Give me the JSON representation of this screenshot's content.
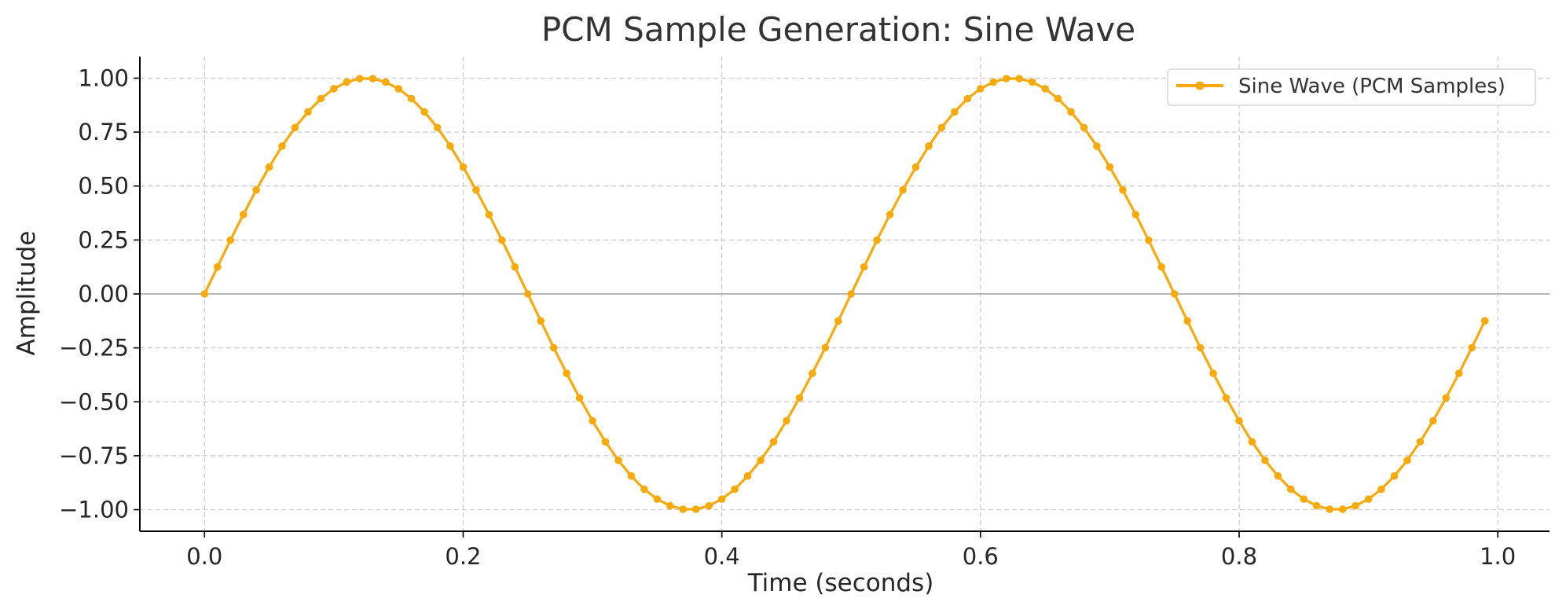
{
  "chart_data": {
    "type": "line",
    "title": "PCM Sample Generation: Sine Wave",
    "xlabel": "Time (seconds)",
    "ylabel": "Amplitude",
    "xlim": [
      -0.05,
      1.04
    ],
    "ylim": [
      -1.1,
      1.1
    ],
    "xticks": [
      0.0,
      0.2,
      0.4,
      0.6,
      0.8,
      1.0
    ],
    "xtick_labels": [
      "0.0",
      "0.2",
      "0.4",
      "0.6",
      "0.8",
      "1.0"
    ],
    "yticks": [
      1.0,
      0.75,
      0.5,
      0.25,
      0.0,
      -0.25,
      -0.5,
      -0.75,
      -1.0
    ],
    "ytick_labels": [
      "1.00",
      "0.75",
      "0.50",
      "0.25",
      "0.00",
      "−0.25",
      "−0.50",
      "−0.75",
      "−1.00"
    ],
    "grid": true,
    "legend_position": "top-right",
    "series": [
      {
        "name": "Sine Wave (PCM Samples)",
        "color": "#F9AA0B",
        "marker": "circle",
        "x": [
          0.0,
          0.01,
          0.02,
          0.03,
          0.04,
          0.05,
          0.06,
          0.07,
          0.08,
          0.09,
          0.1,
          0.11,
          0.12,
          0.13,
          0.14,
          0.15,
          0.16,
          0.17,
          0.18,
          0.19,
          0.2,
          0.21,
          0.22,
          0.23,
          0.24,
          0.25,
          0.26,
          0.27,
          0.28,
          0.29,
          0.3,
          0.31,
          0.32,
          0.33,
          0.34,
          0.35,
          0.36,
          0.37,
          0.38,
          0.39,
          0.4,
          0.41,
          0.42,
          0.43,
          0.44,
          0.45,
          0.46,
          0.47,
          0.48,
          0.49,
          0.5,
          0.51,
          0.52,
          0.53,
          0.54,
          0.55,
          0.56,
          0.57,
          0.58,
          0.59,
          0.6,
          0.61,
          0.62,
          0.63,
          0.64,
          0.65,
          0.66,
          0.67,
          0.68,
          0.69,
          0.7,
          0.71,
          0.72,
          0.73,
          0.74,
          0.75,
          0.76,
          0.77,
          0.78,
          0.79,
          0.8,
          0.81,
          0.82,
          0.83,
          0.84,
          0.85,
          0.86,
          0.87,
          0.88,
          0.89,
          0.9,
          0.91,
          0.92,
          0.93,
          0.94,
          0.95,
          0.96,
          0.97,
          0.98,
          0.99
        ],
        "y": [
          0.0,
          0.125,
          0.249,
          0.368,
          0.482,
          0.588,
          0.685,
          0.771,
          0.844,
          0.905,
          0.951,
          0.982,
          0.998,
          0.998,
          0.982,
          0.951,
          0.905,
          0.844,
          0.771,
          0.685,
          0.588,
          0.482,
          0.368,
          0.249,
          0.125,
          0.0,
          -0.125,
          -0.249,
          -0.368,
          -0.482,
          -0.588,
          -0.685,
          -0.771,
          -0.844,
          -0.905,
          -0.951,
          -0.982,
          -0.998,
          -0.998,
          -0.982,
          -0.951,
          -0.905,
          -0.844,
          -0.771,
          -0.685,
          -0.588,
          -0.482,
          -0.368,
          -0.249,
          -0.125,
          0.0,
          0.125,
          0.249,
          0.368,
          0.482,
          0.588,
          0.685,
          0.771,
          0.844,
          0.905,
          0.951,
          0.982,
          0.998,
          0.998,
          0.982,
          0.951,
          0.905,
          0.844,
          0.771,
          0.685,
          0.588,
          0.482,
          0.368,
          0.249,
          0.125,
          0.0,
          -0.125,
          -0.249,
          -0.368,
          -0.482,
          -0.588,
          -0.685,
          -0.771,
          -0.844,
          -0.905,
          -0.951,
          -0.982,
          -0.998,
          -0.998,
          -0.982,
          -0.951,
          -0.905,
          -0.844,
          -0.771,
          -0.685,
          -0.588,
          -0.482,
          -0.368,
          -0.249,
          -0.125
        ]
      }
    ]
  }
}
